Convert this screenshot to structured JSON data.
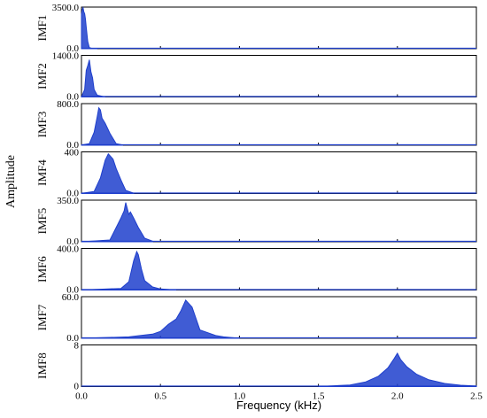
{
  "chart_data": {
    "type": "line",
    "title": "",
    "ylabel": "Amplitude",
    "xlabel": "Frequency (kHz)",
    "xlim": [
      0,
      2.5
    ],
    "x_ticks": [
      "0.0",
      "0.5",
      "1.0",
      "1.5",
      "2.0",
      "2.5"
    ],
    "grid": false,
    "legend": "none",
    "colors": {
      "line": "#1f3fcc",
      "axis": "#000000"
    },
    "panels": [
      {
        "name": "IMF1",
        "ylim": [
          0,
          3500
        ],
        "y_ticks": [
          "0.0",
          "3500.0"
        ],
        "x": [
          0.0,
          0.005,
          0.01,
          0.015,
          0.02,
          0.025,
          0.03,
          0.04,
          0.05,
          0.07,
          0.1
        ],
        "y": [
          2900,
          3300,
          3450,
          3100,
          2950,
          2500,
          1800,
          600,
          100,
          10,
          0
        ]
      },
      {
        "name": "IMF2",
        "ylim": [
          0,
          1400
        ],
        "y_ticks": [
          "0.0",
          "1400.0"
        ],
        "x": [
          0.0,
          0.02,
          0.03,
          0.04,
          0.05,
          0.06,
          0.07,
          0.08,
          0.1,
          0.15
        ],
        "y": [
          0,
          250,
          900,
          1050,
          1250,
          850,
          650,
          250,
          60,
          0
        ]
      },
      {
        "name": "IMF3",
        "ylim": [
          0,
          800
        ],
        "y_ticks": [
          "0.0",
          "800.0"
        ],
        "x": [
          0.0,
          0.05,
          0.08,
          0.1,
          0.11,
          0.12,
          0.13,
          0.15,
          0.18,
          0.22,
          0.26
        ],
        "y": [
          5,
          30,
          250,
          550,
          720,
          680,
          520,
          420,
          230,
          30,
          5
        ]
      },
      {
        "name": "IMF4",
        "ylim": [
          0,
          400
        ],
        "y_ticks": [
          "0.0",
          "400"
        ],
        "x": [
          0.0,
          0.08,
          0.12,
          0.15,
          0.17,
          0.2,
          0.22,
          0.25,
          0.28,
          0.33
        ],
        "y": [
          2,
          20,
          150,
          320,
          380,
          330,
          240,
          130,
          30,
          3
        ]
      },
      {
        "name": "IMF5",
        "ylim": [
          0,
          350
        ],
        "y_ticks": [
          "0.0",
          "350.0"
        ],
        "x": [
          0.0,
          0.18,
          0.22,
          0.25,
          0.27,
          0.28,
          0.3,
          0.31,
          0.33,
          0.36,
          0.4,
          0.45
        ],
        "y": [
          0,
          15,
          120,
          200,
          260,
          330,
          230,
          250,
          200,
          120,
          30,
          5
        ]
      },
      {
        "name": "IMF6",
        "ylim": [
          0,
          400
        ],
        "y_ticks": [
          "0.0",
          "400.0"
        ],
        "x": [
          0.0,
          0.25,
          0.3,
          0.33,
          0.35,
          0.36,
          0.38,
          0.4,
          0.45,
          0.5,
          0.6
        ],
        "y": [
          0,
          15,
          80,
          280,
          370,
          340,
          200,
          90,
          30,
          10,
          0
        ]
      },
      {
        "name": "IMF7",
        "ylim": [
          0,
          60
        ],
        "y_ticks": [
          "0.0",
          "60.0"
        ],
        "x": [
          0.0,
          0.3,
          0.45,
          0.5,
          0.55,
          0.6,
          0.63,
          0.66,
          0.7,
          0.75,
          0.8,
          0.85,
          0.9,
          1.0
        ],
        "y": [
          0,
          2,
          6,
          10,
          20,
          28,
          40,
          55,
          45,
          12,
          8,
          4,
          2,
          0
        ]
      },
      {
        "name": "IMF8",
        "ylim": [
          0,
          8
        ],
        "y_ticks": [
          "0",
          "8"
        ],
        "x": [
          1.5,
          1.7,
          1.8,
          1.88,
          1.94,
          1.98,
          2.0,
          2.02,
          2.06,
          2.12,
          2.2,
          2.3,
          2.4,
          2.5
        ],
        "y": [
          0,
          0.3,
          0.9,
          2.0,
          3.6,
          5.4,
          6.4,
          5.2,
          3.8,
          2.4,
          1.3,
          0.6,
          0.25,
          0.1
        ]
      }
    ]
  }
}
